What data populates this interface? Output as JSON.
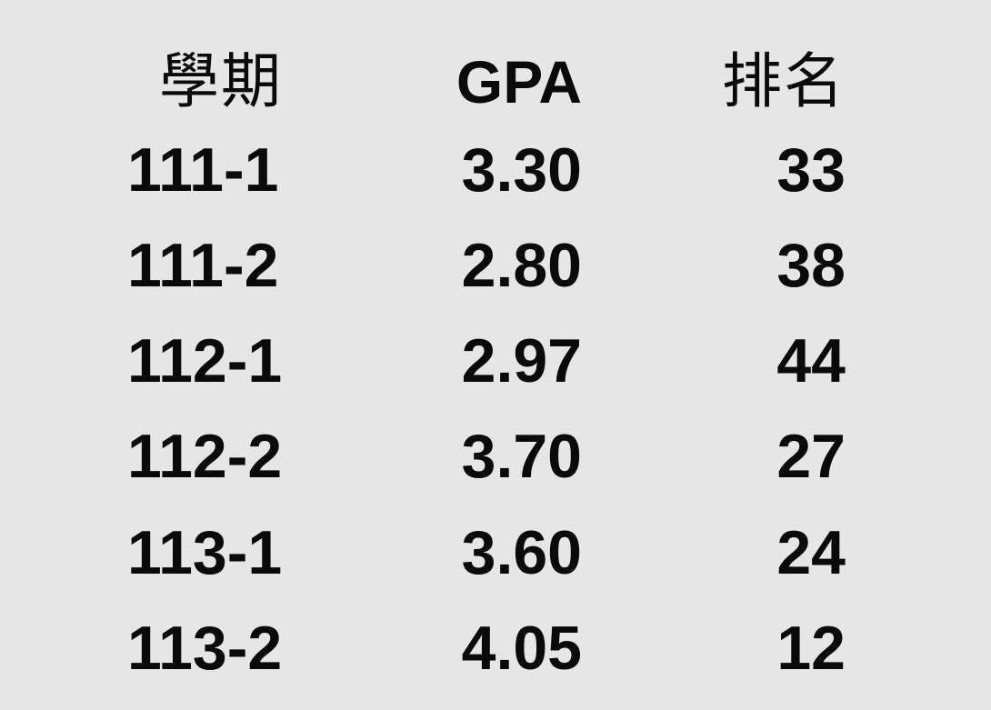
{
  "table": {
    "headers": {
      "term": "學期",
      "gpa": "GPA",
      "rank": "排名"
    },
    "rows": [
      {
        "term": "111-1",
        "gpa": "3.30",
        "rank": "33"
      },
      {
        "term": "111-2",
        "gpa": "2.80",
        "rank": "38"
      },
      {
        "term": "112-1",
        "gpa": "2.97",
        "rank": "44"
      },
      {
        "term": "112-2",
        "gpa": "3.70",
        "rank": "27"
      },
      {
        "term": "113-1",
        "gpa": "3.60",
        "rank": "24"
      },
      {
        "term": "113-2",
        "gpa": "4.05",
        "rank": "12"
      }
    ]
  },
  "colors": {
    "background": "#e6e6e6",
    "text": "#0a0a0a"
  }
}
